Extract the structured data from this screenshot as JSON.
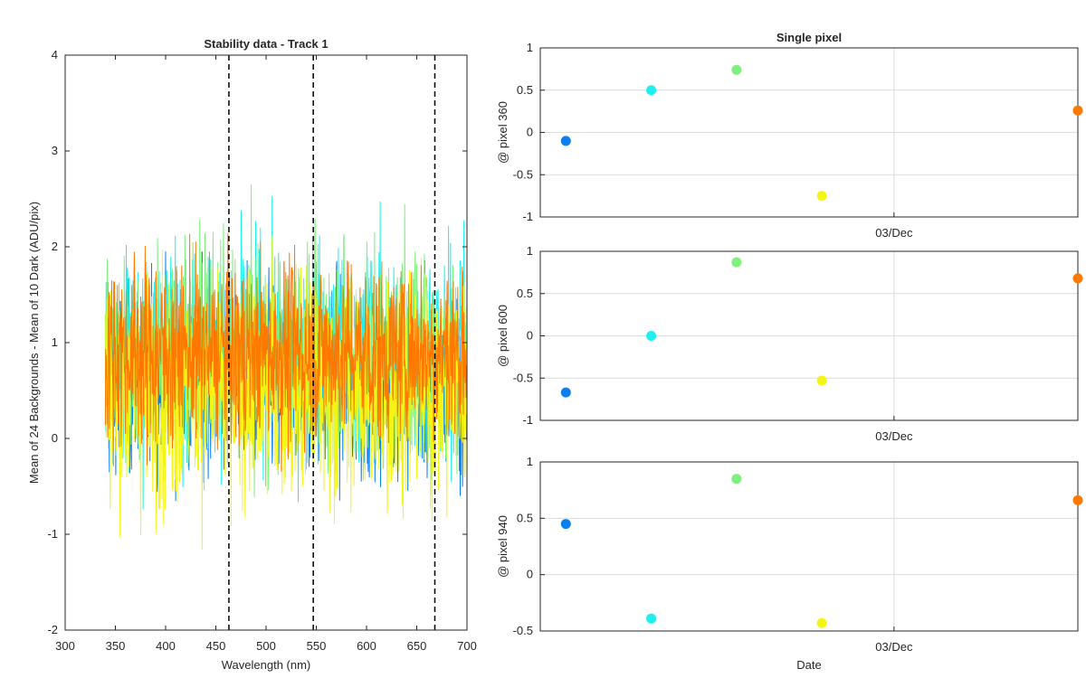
{
  "chart_data": [
    {
      "type": "line",
      "title": "Stability data - Track 1",
      "xlabel": "Wavelength (nm)",
      "ylabel": "Mean of 24 Backgrounds - Mean of 10 Dark (ADU/pix)",
      "xlim": [
        300,
        700
      ],
      "ylim": [
        -2,
        4
      ],
      "xticks": [
        300,
        350,
        400,
        450,
        500,
        550,
        600,
        650,
        700
      ],
      "yticks": [
        -2,
        -1,
        0,
        1,
        2,
        3,
        4
      ],
      "grid": false,
      "x_range_of_data": [
        340,
        700
      ],
      "series_colors": [
        "#0a7ff0",
        "#1ef0f0",
        "#7ef07e",
        "#f5f514",
        "#ff7800"
      ],
      "series": [
        {
          "color": "#0a7ff0",
          "mean": 0.6,
          "spread_min": -1.4,
          "spread_max": 2.2
        },
        {
          "color": "#1ef0f0",
          "mean": 0.9,
          "spread_min": -1.0,
          "spread_max": 2.8
        },
        {
          "color": "#7ef07e",
          "mean": 0.9,
          "spread_min": -1.0,
          "spread_max": 3.0
        },
        {
          "color": "#f5f514",
          "mean": 0.5,
          "spread_min": -1.8,
          "spread_max": 2.5
        },
        {
          "color": "#ff7800",
          "mean": 0.9,
          "spread_min": -0.5,
          "spread_max": 2.9
        }
      ],
      "vlines": [
        463,
        547,
        668
      ],
      "vline_style": "dashed",
      "vline_color": "#000000"
    },
    {
      "type": "scatter",
      "title": "Single pixel",
      "ylabel": "@ pixel 360",
      "ylim": [
        -1,
        1
      ],
      "yticks": [
        -1,
        -0.5,
        0,
        0.5,
        1
      ],
      "ytick_labels": [
        "-1",
        "-0.5",
        "0",
        "0.5",
        "1"
      ],
      "xtick_labels": [
        "03/Dec"
      ],
      "grid": true,
      "points": [
        {
          "x": 1,
          "y": -0.1,
          "color": "#0a7ff0"
        },
        {
          "x": 2,
          "y": 0.5,
          "color": "#1ef0f0"
        },
        {
          "x": 3,
          "y": 0.74,
          "color": "#7ef07e"
        },
        {
          "x": 4,
          "y": -0.75,
          "color": "#f5f514"
        },
        {
          "x": 7,
          "y": 0.26,
          "color": "#ff7800"
        }
      ]
    },
    {
      "type": "scatter",
      "ylabel": "@ pixel 600",
      "ylim": [
        -1,
        1
      ],
      "yticks": [
        -1,
        -0.5,
        0,
        0.5,
        1
      ],
      "ytick_labels": [
        "-1",
        "-0.5",
        "0",
        "0.5",
        "1"
      ],
      "xtick_labels": [
        "03/Dec"
      ],
      "grid": true,
      "points": [
        {
          "x": 1,
          "y": -0.67,
          "color": "#0a7ff0"
        },
        {
          "x": 2,
          "y": 0.0,
          "color": "#1ef0f0"
        },
        {
          "x": 3,
          "y": 0.87,
          "color": "#7ef07e"
        },
        {
          "x": 4,
          "y": -0.53,
          "color": "#f5f514"
        },
        {
          "x": 7,
          "y": 0.68,
          "color": "#ff7800"
        }
      ]
    },
    {
      "type": "scatter",
      "ylabel": "@ pixel 940",
      "xlabel": "Date",
      "ylim": [
        -0.5,
        1
      ],
      "yticks": [
        -0.5,
        0,
        0.5,
        1
      ],
      "ytick_labels": [
        "-0.5",
        "0",
        "0.5",
        "1"
      ],
      "xtick_labels": [
        "03/Dec"
      ],
      "grid": true,
      "points": [
        {
          "x": 1,
          "y": 0.45,
          "color": "#0a7ff0"
        },
        {
          "x": 2,
          "y": -0.39,
          "color": "#1ef0f0"
        },
        {
          "x": 3,
          "y": 0.85,
          "color": "#7ef07e"
        },
        {
          "x": 4,
          "y": -0.43,
          "color": "#f5f514"
        },
        {
          "x": 7,
          "y": 0.66,
          "color": "#ff7800"
        }
      ]
    }
  ]
}
